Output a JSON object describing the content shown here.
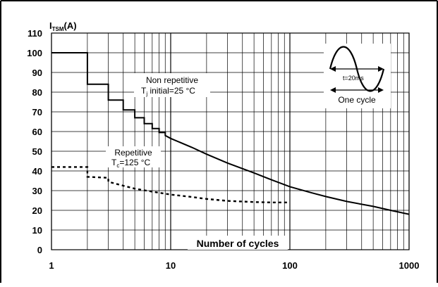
{
  "chart_data": {
    "type": "line",
    "title": "",
    "ylabel": {
      "main": "I",
      "sub": "TSM",
      "unit": "(A)"
    },
    "xlabel": "Number of cycles",
    "xscale": "log",
    "xlim": [
      1,
      1000
    ],
    "ylim": [
      0,
      110
    ],
    "grid": true,
    "yticks": [
      "0",
      "10",
      "20",
      "30",
      "40",
      "50",
      "60",
      "70",
      "80",
      "90",
      "100",
      "110"
    ],
    "xticks": [
      "1",
      "10",
      "100",
      "1000"
    ],
    "series": [
      {
        "style": "solid",
        "x": [
          1,
          2,
          2,
          3,
          3,
          4,
          4,
          5,
          5,
          6,
          6,
          7,
          7,
          8,
          8,
          9,
          9,
          10,
          15,
          20,
          30,
          50,
          70,
          100,
          150,
          200,
          300,
          500,
          700,
          1000
        ],
        "y": [
          100,
          100,
          84,
          84,
          76,
          76,
          71,
          71,
          67,
          67,
          64,
          64,
          61.5,
          61.5,
          59.5,
          59.5,
          58,
          56.5,
          52,
          48.5,
          44,
          39,
          35.5,
          32,
          29,
          27,
          24.5,
          22,
          20,
          18
        ]
      },
      {
        "style": "dashed",
        "x": [
          1,
          2,
          2,
          3,
          3,
          4,
          5,
          7,
          10,
          15,
          20,
          30,
          50,
          70,
          100
        ],
        "y": [
          42,
          42,
          37,
          36.5,
          34.5,
          32.5,
          31,
          29.5,
          28,
          26.8,
          25.8,
          24.8,
          24.2,
          24,
          24
        ]
      }
    ],
    "annotations": {
      "non_repetitive": {
        "line1": "Non repetitive",
        "line2_prefix": "T",
        "line2_sub": "j",
        "line2_rest": " initial=25 °C"
      },
      "repetitive": {
        "line1": "Repetitive",
        "line2_prefix": "T",
        "line2_sub": "c",
        "line2_rest": "=125 °C"
      },
      "inset": {
        "period_label": "t=20ms",
        "cycle_label": "One cycle"
      }
    }
  }
}
